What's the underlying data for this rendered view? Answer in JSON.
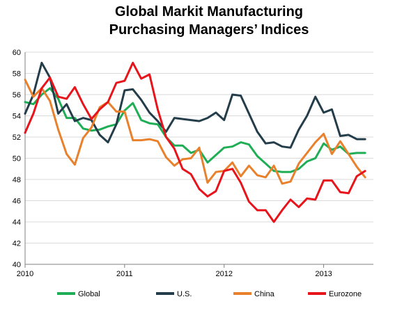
{
  "chart_data": {
    "type": "line",
    "title_lines": [
      "Global Markit Manufacturing",
      "Purchasing Managers’ Indices"
    ],
    "xlabel": "",
    "ylabel": "",
    "ylim": [
      40,
      60
    ],
    "y_ticks": [
      40,
      42,
      44,
      46,
      48,
      50,
      52,
      54,
      56,
      58,
      60
    ],
    "x_range": [
      2010,
      2013.5
    ],
    "x_ticks": [
      2010,
      2011,
      2012,
      2013
    ],
    "grid": "horizontal",
    "legend_position": "bottom",
    "series": [
      {
        "name": "Global",
        "color": "#1fae55",
        "x": [
          2010.0,
          2010.083,
          2010.167,
          2010.25,
          2010.333,
          2010.417,
          2010.5,
          2010.583,
          2010.667,
          2010.75,
          2010.833,
          2010.917,
          2011.0,
          2011.083,
          2011.167,
          2011.25,
          2011.333,
          2011.417,
          2011.5,
          2011.583,
          2011.667,
          2011.75,
          2011.833,
          2011.917,
          2012.0,
          2012.083,
          2012.167,
          2012.25,
          2012.333,
          2012.417,
          2012.5,
          2012.583,
          2012.667,
          2012.75,
          2012.833,
          2012.917,
          2013.0,
          2013.083,
          2013.167,
          2013.25,
          2013.333,
          2013.417
        ],
        "values": [
          55.3,
          55.1,
          56.0,
          56.6,
          55.6,
          53.8,
          53.8,
          52.8,
          52.6,
          52.7,
          53.0,
          53.2,
          54.5,
          55.2,
          53.6,
          53.3,
          53.2,
          52.0,
          51.2,
          51.2,
          50.5,
          50.8,
          49.6,
          50.3,
          51.0,
          51.1,
          51.5,
          51.3,
          50.2,
          49.5,
          48.8,
          48.7,
          48.7,
          49.0,
          49.7,
          50.0,
          51.4,
          50.8,
          51.1,
          50.4,
          50.5,
          50.5
        ]
      },
      {
        "name": "U.S.",
        "color": "#243d4a",
        "x": [
          2010.0,
          2010.083,
          2010.167,
          2010.25,
          2010.333,
          2010.417,
          2010.5,
          2010.583,
          2010.667,
          2010.75,
          2010.833,
          2010.917,
          2011.0,
          2011.083,
          2011.167,
          2011.25,
          2011.333,
          2011.417,
          2011.5,
          2011.583,
          2011.667,
          2011.75,
          2011.833,
          2011.917,
          2012.0,
          2012.083,
          2012.167,
          2012.25,
          2012.333,
          2012.417,
          2012.5,
          2012.583,
          2012.667,
          2012.75,
          2012.833,
          2012.917,
          2013.0,
          2013.083,
          2013.167,
          2013.25,
          2013.333,
          2013.417
        ],
        "values": [
          54.2,
          56.0,
          59.0,
          57.6,
          54.2,
          55.1,
          53.5,
          53.8,
          53.6,
          52.2,
          51.5,
          53.2,
          56.4,
          56.5,
          55.5,
          54.3,
          53.5,
          52.5,
          53.8,
          53.7,
          53.6,
          53.5,
          53.8,
          54.3,
          53.6,
          56.0,
          55.9,
          54.2,
          52.5,
          51.4,
          51.5,
          51.1,
          51.0,
          52.7,
          54.0,
          55.8,
          54.3,
          54.6,
          52.1,
          52.2,
          51.8,
          51.8
        ]
      },
      {
        "name": "China",
        "color": "#e9812c",
        "x": [
          2010.0,
          2010.083,
          2010.167,
          2010.25,
          2010.333,
          2010.417,
          2010.5,
          2010.583,
          2010.667,
          2010.75,
          2010.833,
          2010.917,
          2011.0,
          2011.083,
          2011.167,
          2011.25,
          2011.333,
          2011.417,
          2011.5,
          2011.583,
          2011.667,
          2011.75,
          2011.833,
          2011.917,
          2012.0,
          2012.083,
          2012.167,
          2012.25,
          2012.333,
          2012.417,
          2012.5,
          2012.583,
          2012.667,
          2012.75,
          2012.833,
          2012.917,
          2013.0,
          2013.083,
          2013.167,
          2013.25,
          2013.333,
          2013.417
        ],
        "values": [
          57.4,
          55.8,
          56.6,
          55.4,
          52.7,
          50.4,
          49.4,
          51.9,
          52.9,
          54.8,
          55.3,
          54.4,
          54.4,
          51.7,
          51.7,
          51.8,
          51.6,
          50.1,
          49.3,
          49.9,
          50.0,
          51.0,
          47.7,
          48.7,
          48.8,
          49.6,
          48.3,
          49.3,
          48.4,
          48.2,
          49.3,
          47.6,
          47.8,
          49.5,
          50.5,
          51.5,
          52.3,
          50.4,
          51.6,
          50.4,
          49.2,
          48.2
        ]
      },
      {
        "name": "Eurozone",
        "color": "#e8141c",
        "x": [
          2010.0,
          2010.083,
          2010.167,
          2010.25,
          2010.333,
          2010.417,
          2010.5,
          2010.583,
          2010.667,
          2010.75,
          2010.833,
          2010.917,
          2011.0,
          2011.083,
          2011.167,
          2011.25,
          2011.333,
          2011.417,
          2011.5,
          2011.583,
          2011.667,
          2011.75,
          2011.833,
          2011.917,
          2012.0,
          2012.083,
          2012.167,
          2012.25,
          2012.333,
          2012.417,
          2012.5,
          2012.583,
          2012.667,
          2012.75,
          2012.833,
          2012.917,
          2013.0,
          2013.083,
          2013.167,
          2013.25,
          2013.333,
          2013.417
        ],
        "values": [
          52.4,
          54.2,
          56.6,
          57.6,
          55.8,
          55.6,
          56.7,
          55.1,
          53.7,
          54.6,
          55.3,
          57.1,
          57.3,
          59.0,
          57.5,
          57.9,
          54.6,
          52.0,
          50.9,
          49.0,
          48.5,
          47.1,
          46.4,
          46.9,
          48.8,
          49.0,
          47.7,
          45.9,
          45.1,
          45.1,
          44.0,
          45.1,
          46.1,
          45.4,
          46.2,
          46.1,
          47.9,
          47.9,
          46.8,
          46.7,
          48.3,
          48.8
        ]
      }
    ]
  }
}
